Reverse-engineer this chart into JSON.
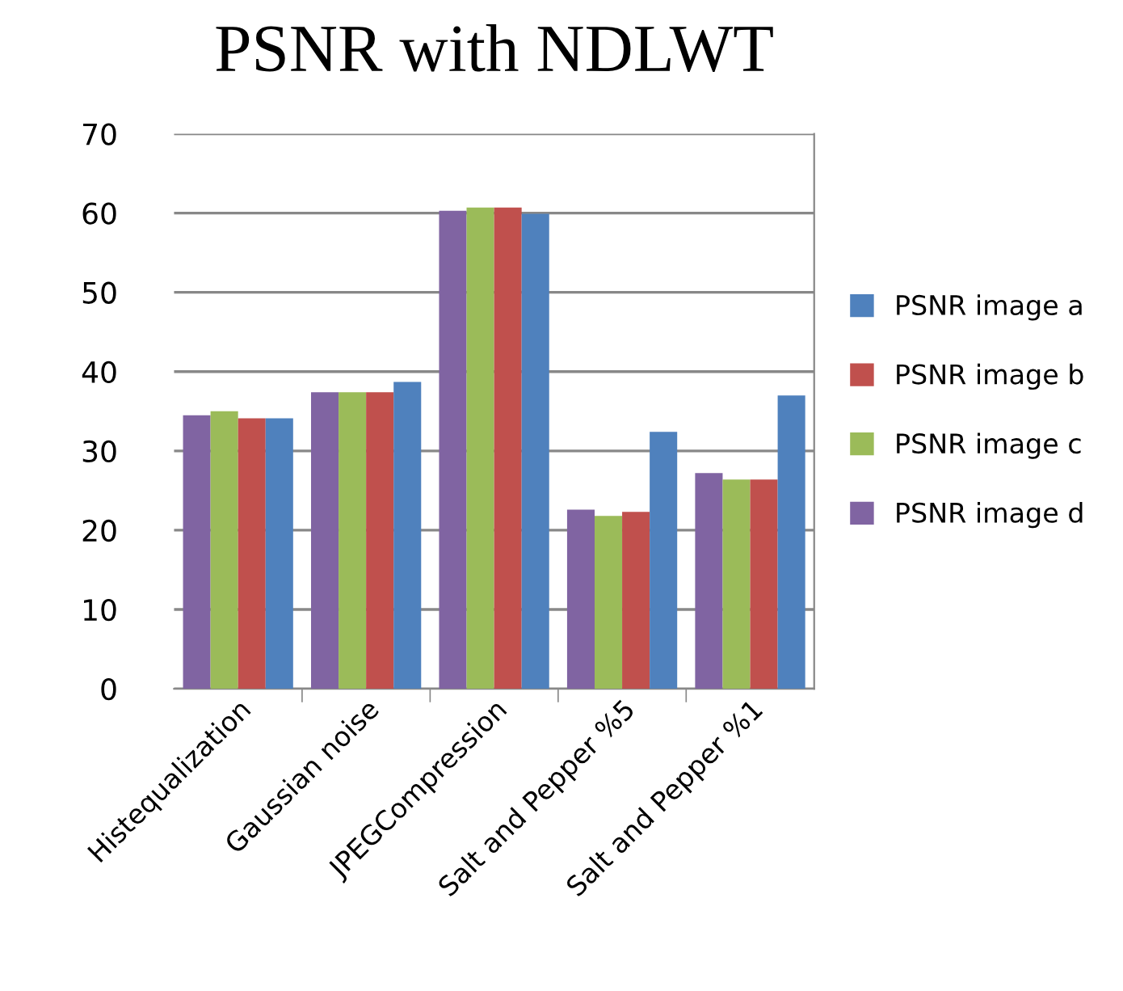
{
  "chart_data": {
    "type": "bar",
    "title": "PSNR with NDLWT",
    "categories": [
      "Histequalization",
      "Gaussian noise",
      "JPEGCompression",
      "Salt and Pepper %5",
      "Salt and Pepper %1"
    ],
    "series": [
      {
        "name": "PSNR image d",
        "color": "#8064a2",
        "values": [
          34.5,
          37.4,
          60.3,
          22.6,
          27.2
        ]
      },
      {
        "name": "PSNR image c",
        "color": "#9bbb59",
        "values": [
          35.0,
          37.4,
          60.7,
          21.8,
          26.4
        ]
      },
      {
        "name": "PSNR image b",
        "color": "#c0504d",
        "values": [
          34.1,
          37.4,
          60.7,
          22.3,
          26.4
        ]
      },
      {
        "name": "PSNR image a",
        "color": "#4f81bd",
        "values": [
          34.1,
          38.7,
          59.9,
          32.4,
          37.0
        ]
      }
    ],
    "ylim": [
      0,
      70
    ],
    "yticks": [
      0,
      10,
      20,
      30,
      40,
      50,
      60,
      70
    ],
    "grid": "y",
    "legend": "right"
  }
}
